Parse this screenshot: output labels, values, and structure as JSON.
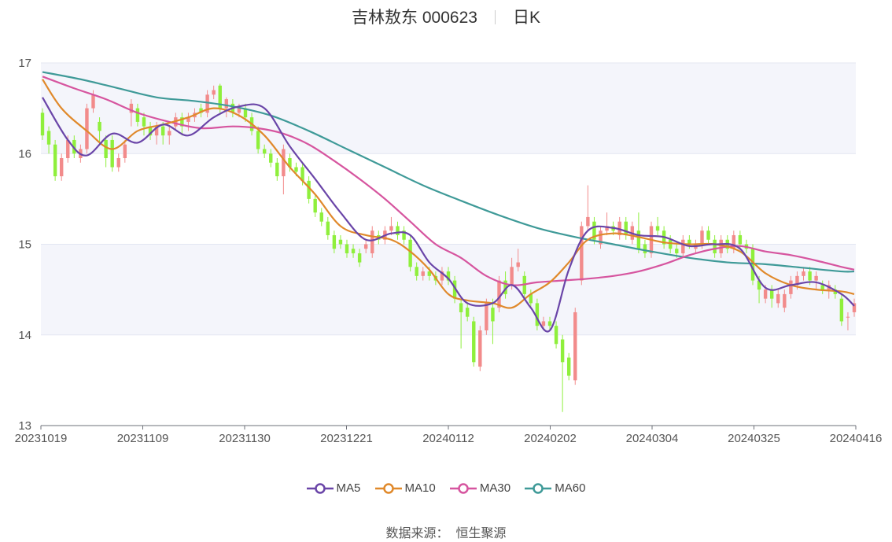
{
  "header": {
    "stock": "吉林敖东 000623",
    "period": "日K"
  },
  "footer": {
    "source_label": "数据来源：",
    "source_name": "恒生聚源"
  },
  "chart_data": {
    "type": "candlestick",
    "ylim": [
      13,
      17
    ],
    "y_ticks": [
      "13",
      "14",
      "15",
      "16",
      "17"
    ],
    "x_ticks": [
      "20231019",
      "20231109",
      "20231130",
      "20231221",
      "20240112",
      "20240202",
      "20240304",
      "20240325",
      "20240416"
    ],
    "legend": [
      "MA5",
      "MA10",
      "MA30",
      "MA60"
    ],
    "colors": {
      "up": "#f28b8b",
      "down": "#8fef3c",
      "MA5": "#6a45a8",
      "MA10": "#e0892b",
      "MA30": "#d6559f",
      "MA60": "#3f9a98",
      "band": "#f4f5fb",
      "grid": "#e3e6f2",
      "axis": "#6e7079"
    },
    "candles": [
      [
        16.45,
        16.2,
        16.5,
        16.15
      ],
      [
        16.25,
        16.1,
        16.3,
        16.0
      ],
      [
        16.1,
        15.75,
        16.15,
        15.7
      ],
      [
        15.75,
        15.95,
        16.0,
        15.7
      ],
      [
        15.95,
        16.15,
        16.2,
        15.9
      ],
      [
        16.15,
        16.0,
        16.2,
        15.95
      ],
      [
        15.95,
        16.05,
        16.1,
        15.9
      ],
      [
        16.05,
        16.5,
        16.55,
        16.0
      ],
      [
        16.5,
        16.65,
        16.7,
        16.45
      ],
      [
        16.35,
        16.25,
        16.4,
        16.1
      ],
      [
        16.15,
        15.95,
        16.2,
        15.85
      ],
      [
        16.15,
        15.85,
        16.2,
        15.8
      ],
      [
        15.85,
        15.95,
        16.0,
        15.8
      ],
      [
        15.95,
        16.1,
        16.15,
        15.9
      ],
      [
        16.45,
        16.55,
        16.6,
        16.3
      ],
      [
        16.5,
        16.35,
        16.55,
        16.3
      ],
      [
        16.4,
        16.3,
        16.45,
        16.2
      ],
      [
        16.3,
        16.2,
        16.35,
        16.15
      ],
      [
        16.2,
        16.3,
        16.35,
        16.1
      ],
      [
        16.3,
        16.2,
        16.35,
        16.1
      ],
      [
        16.2,
        16.25,
        16.3,
        16.1
      ],
      [
        16.3,
        16.4,
        16.45,
        16.25
      ],
      [
        16.4,
        16.3,
        16.45,
        16.2
      ],
      [
        16.35,
        16.4,
        16.45,
        16.25
      ],
      [
        16.4,
        16.45,
        16.5,
        16.35
      ],
      [
        16.5,
        16.45,
        16.55,
        16.4
      ],
      [
        16.45,
        16.65,
        16.7,
        16.4
      ],
      [
        16.65,
        16.7,
        16.75,
        16.6
      ],
      [
        16.75,
        16.5,
        16.77,
        16.45
      ],
      [
        16.5,
        16.6,
        16.62,
        16.4
      ],
      [
        16.55,
        16.45,
        16.6,
        16.4
      ],
      [
        16.45,
        16.5,
        16.55,
        16.4
      ],
      [
        16.5,
        16.4,
        16.55,
        16.35
      ],
      [
        16.4,
        16.25,
        16.45,
        16.2
      ],
      [
        16.25,
        16.05,
        16.3,
        16.0
      ],
      [
        16.05,
        16.0,
        16.1,
        15.95
      ],
      [
        16.0,
        15.9,
        16.05,
        15.85
      ],
      [
        15.9,
        15.75,
        15.95,
        15.7
      ],
      [
        15.75,
        16.05,
        16.1,
        15.55
      ],
      [
        15.95,
        15.85,
        16.0,
        15.8
      ],
      [
        15.85,
        15.8,
        15.9,
        15.75
      ],
      [
        15.85,
        15.7,
        15.9,
        15.65
      ],
      [
        15.7,
        15.5,
        15.75,
        15.45
      ],
      [
        15.5,
        15.35,
        15.55,
        15.3
      ],
      [
        15.35,
        15.25,
        15.4,
        15.2
      ],
      [
        15.25,
        15.1,
        15.3,
        15.05
      ],
      [
        15.1,
        14.95,
        15.15,
        14.9
      ],
      [
        15.05,
        15.0,
        15.1,
        14.95
      ],
      [
        15.0,
        14.9,
        15.05,
        14.85
      ],
      [
        14.95,
        14.9,
        15.0,
        14.85
      ],
      [
        14.9,
        14.8,
        14.95,
        14.75
      ],
      [
        14.95,
        15.0,
        15.05,
        14.9
      ],
      [
        14.9,
        15.15,
        15.2,
        14.85
      ],
      [
        15.1,
        15.05,
        15.15,
        15.0
      ],
      [
        15.05,
        15.15,
        15.2,
        15.0
      ],
      [
        15.15,
        15.2,
        15.3,
        15.1
      ],
      [
        15.2,
        15.1,
        15.25,
        15.05
      ],
      [
        15.15,
        15.05,
        15.2,
        15.0
      ],
      [
        15.05,
        14.75,
        15.1,
        14.7
      ],
      [
        14.75,
        14.65,
        14.8,
        14.6
      ],
      [
        14.65,
        14.7,
        14.75,
        14.6
      ],
      [
        14.7,
        14.65,
        14.75,
        14.6
      ],
      [
        14.65,
        14.6,
        14.7,
        14.55
      ],
      [
        14.6,
        14.7,
        14.75,
        14.55
      ],
      [
        14.7,
        14.6,
        14.75,
        14.55
      ],
      [
        14.6,
        14.4,
        14.65,
        14.35
      ],
      [
        14.35,
        14.25,
        14.4,
        13.85
      ],
      [
        14.3,
        14.2,
        14.35,
        14.15
      ],
      [
        14.15,
        13.7,
        14.2,
        13.65
      ],
      [
        13.65,
        14.05,
        14.1,
        13.6
      ],
      [
        14.05,
        14.35,
        14.4,
        14.0
      ],
      [
        14.3,
        14.15,
        14.4,
        13.9
      ],
      [
        14.3,
        14.6,
        14.65,
        14.25
      ],
      [
        14.6,
        14.45,
        14.7,
        14.4
      ],
      [
        14.55,
        14.75,
        14.85,
        14.5
      ],
      [
        14.75,
        14.8,
        14.95,
        14.7
      ],
      [
        14.65,
        14.45,
        14.7,
        14.4
      ],
      [
        14.45,
        14.35,
        14.5,
        14.3
      ],
      [
        14.35,
        14.1,
        14.4,
        14.05
      ],
      [
        14.1,
        14.15,
        14.2,
        14.05
      ],
      [
        14.15,
        14.1,
        14.2,
        14.05
      ],
      [
        14.1,
        13.9,
        14.15,
        13.85
      ],
      [
        13.95,
        13.7,
        14.0,
        13.15
      ],
      [
        13.75,
        13.55,
        13.8,
        13.5
      ],
      [
        13.5,
        14.25,
        14.3,
        13.45
      ],
      [
        14.6,
        15.2,
        15.25,
        14.55
      ],
      [
        15.2,
        15.3,
        15.65,
        15.15
      ],
      [
        15.25,
        15.05,
        15.3,
        15.0
      ],
      [
        15.0,
        15.15,
        15.2,
        14.95
      ],
      [
        15.15,
        15.2,
        15.35,
        15.1
      ],
      [
        15.2,
        15.15,
        15.25,
        15.1
      ],
      [
        15.1,
        15.25,
        15.3,
        15.05
      ],
      [
        15.25,
        15.1,
        15.3,
        15.05
      ],
      [
        15.05,
        15.2,
        15.25,
        15.0
      ],
      [
        15.15,
        14.95,
        15.35,
        14.9
      ],
      [
        15.0,
        14.9,
        15.05,
        14.85
      ],
      [
        14.9,
        15.2,
        15.25,
        14.85
      ],
      [
        15.2,
        15.15,
        15.3,
        15.1
      ],
      [
        15.15,
        15.0,
        15.2,
        14.95
      ],
      [
        15.05,
        14.95,
        15.1,
        14.9
      ],
      [
        14.95,
        14.9,
        15.0,
        14.85
      ],
      [
        14.9,
        15.05,
        15.1,
        14.85
      ],
      [
        15.05,
        15.0,
        15.1,
        14.95
      ],
      [
        14.95,
        15.0,
        15.05,
        14.9
      ],
      [
        15.0,
        15.15,
        15.2,
        14.95
      ],
      [
        15.15,
        15.05,
        15.2,
        15.0
      ],
      [
        15.05,
        14.9,
        15.1,
        14.85
      ],
      [
        14.9,
        15.05,
        15.1,
        14.85
      ],
      [
        15.05,
        14.95,
        15.1,
        14.9
      ],
      [
        14.95,
        15.1,
        15.15,
        14.9
      ],
      [
        15.1,
        15.0,
        15.15,
        14.95
      ],
      [
        15.0,
        14.95,
        15.05,
        14.9
      ],
      [
        14.95,
        14.6,
        15.0,
        14.55
      ],
      [
        14.6,
        14.5,
        14.65,
        14.35
      ],
      [
        14.4,
        14.5,
        14.55,
        14.35
      ],
      [
        14.5,
        14.4,
        14.55,
        14.3
      ],
      [
        14.35,
        14.45,
        14.5,
        14.3
      ],
      [
        14.3,
        14.45,
        14.5,
        14.25
      ],
      [
        14.45,
        14.6,
        14.65,
        14.4
      ],
      [
        14.55,
        14.65,
        14.7,
        14.5
      ],
      [
        14.65,
        14.7,
        14.75,
        14.6
      ],
      [
        14.7,
        14.6,
        14.75,
        14.55
      ],
      [
        14.6,
        14.65,
        14.7,
        14.5
      ],
      [
        14.55,
        14.5,
        14.6,
        14.45
      ],
      [
        14.5,
        14.55,
        14.6,
        14.4
      ],
      [
        14.5,
        14.45,
        14.55,
        14.4
      ],
      [
        14.4,
        14.15,
        14.45,
        14.1
      ],
      [
        14.2,
        14.2,
        14.25,
        14.05
      ],
      [
        14.25,
        14.35,
        14.4,
        14.2
      ]
    ],
    "ma": {
      "MA5": [
        [
          0,
          16.62
        ],
        [
          4,
          16.15
        ],
        [
          7,
          15.98
        ],
        [
          11,
          16.22
        ],
        [
          15,
          16.12
        ],
        [
          19,
          16.32
        ],
        [
          23,
          16.2
        ],
        [
          27,
          16.4
        ],
        [
          31,
          16.52
        ],
        [
          35,
          16.5
        ],
        [
          39,
          16.08
        ],
        [
          43,
          15.72
        ],
        [
          47,
          15.35
        ],
        [
          51,
          15.05
        ],
        [
          55,
          15.12
        ],
        [
          58,
          15.1
        ],
        [
          61,
          14.8
        ],
        [
          64,
          14.62
        ],
        [
          67,
          14.35
        ],
        [
          71,
          14.35
        ],
        [
          74,
          14.55
        ],
        [
          77,
          14.3
        ],
        [
          80,
          14.05
        ],
        [
          83,
          14.72
        ],
        [
          86,
          15.15
        ],
        [
          90,
          15.18
        ],
        [
          94,
          15.1
        ],
        [
          98,
          15.08
        ],
        [
          102,
          14.98
        ],
        [
          106,
          15.0
        ],
        [
          110,
          14.95
        ],
        [
          114,
          14.52
        ],
        [
          118,
          14.55
        ],
        [
          122,
          14.58
        ],
        [
          126,
          14.45
        ],
        [
          128,
          14.32
        ]
      ],
      "MA10": [
        [
          0,
          16.82
        ],
        [
          3,
          16.5
        ],
        [
          7,
          16.25
        ],
        [
          11,
          16.05
        ],
        [
          15,
          16.25
        ],
        [
          19,
          16.32
        ],
        [
          23,
          16.4
        ],
        [
          27,
          16.5
        ],
        [
          31,
          16.42
        ],
        [
          35,
          16.2
        ],
        [
          39,
          15.85
        ],
        [
          43,
          15.55
        ],
        [
          47,
          15.2
        ],
        [
          51,
          15.1
        ],
        [
          55,
          15.05
        ],
        [
          58,
          14.92
        ],
        [
          61,
          14.72
        ],
        [
          64,
          14.45
        ],
        [
          67,
          14.38
        ],
        [
          71,
          14.35
        ],
        [
          74,
          14.3
        ],
        [
          77,
          14.45
        ],
        [
          80,
          14.58
        ],
        [
          83,
          14.8
        ],
        [
          86,
          15.05
        ],
        [
          90,
          15.12
        ],
        [
          94,
          15.08
        ],
        [
          98,
          15.02
        ],
        [
          102,
          15.0
        ],
        [
          106,
          15.0
        ],
        [
          110,
          14.92
        ],
        [
          114,
          14.68
        ],
        [
          118,
          14.55
        ],
        [
          122,
          14.5
        ],
        [
          126,
          14.48
        ],
        [
          128,
          14.45
        ]
      ],
      "MA30": [
        [
          0,
          16.85
        ],
        [
          5,
          16.72
        ],
        [
          10,
          16.6
        ],
        [
          15,
          16.45
        ],
        [
          20,
          16.35
        ],
        [
          25,
          16.28
        ],
        [
          30,
          16.3
        ],
        [
          34,
          16.28
        ],
        [
          38,
          16.22
        ],
        [
          42,
          16.1
        ],
        [
          46,
          15.92
        ],
        [
          50,
          15.72
        ],
        [
          54,
          15.5
        ],
        [
          58,
          15.25
        ],
        [
          62,
          15.0
        ],
        [
          66,
          14.85
        ],
        [
          70,
          14.65
        ],
        [
          74,
          14.55
        ],
        [
          78,
          14.58
        ],
        [
          82,
          14.6
        ],
        [
          86,
          14.62
        ],
        [
          90,
          14.65
        ],
        [
          94,
          14.7
        ],
        [
          98,
          14.78
        ],
        [
          102,
          14.88
        ],
        [
          106,
          14.95
        ],
        [
          110,
          14.98
        ],
        [
          114,
          14.92
        ],
        [
          118,
          14.88
        ],
        [
          122,
          14.82
        ],
        [
          126,
          14.75
        ],
        [
          128,
          14.72
        ]
      ],
      "MA60": [
        [
          0,
          16.9
        ],
        [
          6,
          16.82
        ],
        [
          12,
          16.72
        ],
        [
          18,
          16.62
        ],
        [
          24,
          16.58
        ],
        [
          30,
          16.52
        ],
        [
          36,
          16.42
        ],
        [
          42,
          16.25
        ],
        [
          48,
          16.05
        ],
        [
          54,
          15.85
        ],
        [
          60,
          15.65
        ],
        [
          66,
          15.48
        ],
        [
          72,
          15.32
        ],
        [
          78,
          15.18
        ],
        [
          84,
          15.08
        ],
        [
          90,
          15.0
        ],
        [
          96,
          14.92
        ],
        [
          102,
          14.85
        ],
        [
          108,
          14.8
        ],
        [
          114,
          14.78
        ],
        [
          120,
          14.74
        ],
        [
          126,
          14.7
        ],
        [
          128,
          14.7
        ]
      ]
    }
  }
}
